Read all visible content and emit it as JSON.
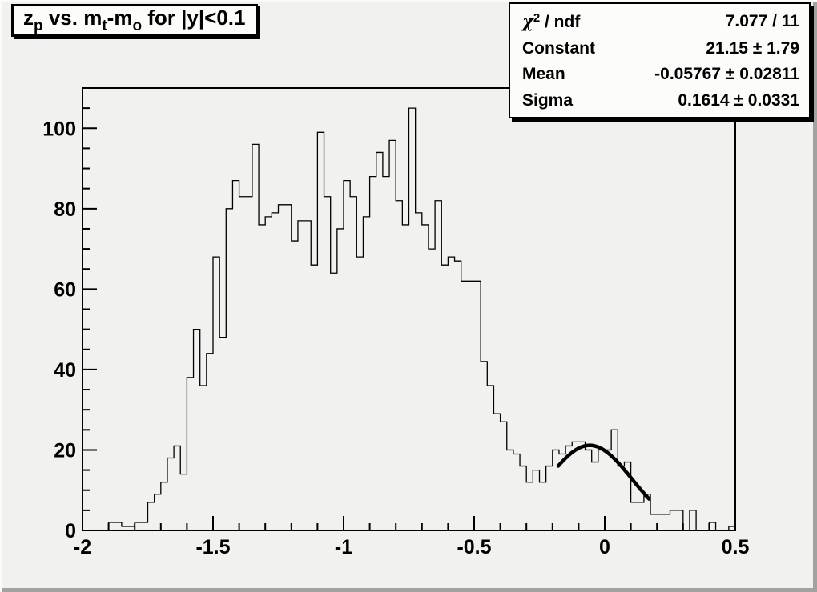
{
  "title": {
    "segments": [
      {
        "t": "z"
      },
      {
        "sub": "p"
      },
      {
        "t": " vs. m"
      },
      {
        "sub": "t"
      },
      {
        "t": "-m"
      },
      {
        "sub": "o"
      },
      {
        "t": " for |y|<0.1"
      }
    ]
  },
  "stats": {
    "rows": [
      {
        "label_segments": [
          {
            "t": "χ",
            "chi": true
          },
          {
            "sup": "2"
          },
          {
            "t": " / ndf"
          }
        ],
        "value": "7.077 / 11"
      },
      {
        "label_segments": [
          {
            "t": "Constant"
          }
        ],
        "value": "21.15 ± 1.79"
      },
      {
        "label_segments": [
          {
            "t": "Mean"
          }
        ],
        "value": "-0.05767 ± 0.02811"
      },
      {
        "label_segments": [
          {
            "t": "Sigma"
          }
        ],
        "value": "0.1614 ± 0.0331"
      }
    ]
  },
  "chart_data": {
    "type": "histogram",
    "title": "z_p vs. m_t-m_o for |y|<0.1",
    "x_start": -2.0,
    "bin_width": 0.025,
    "values": [
      0,
      0,
      0,
      0,
      2,
      2,
      1,
      1,
      2,
      2,
      7,
      9,
      12,
      18,
      21,
      14,
      38,
      50,
      36,
      44,
      68,
      48,
      80,
      87,
      83,
      83,
      96,
      76,
      78,
      79,
      81,
      81,
      72,
      77,
      77,
      66,
      99,
      83,
      64,
      75,
      87,
      83,
      68,
      78,
      88,
      94,
      88,
      97,
      82,
      76,
      105,
      79,
      76,
      70,
      82,
      66,
      68,
      67,
      62,
      62,
      62,
      42,
      36,
      29,
      27,
      20,
      19,
      16,
      12,
      15,
      12,
      16,
      20,
      19,
      21,
      22,
      22,
      20,
      17,
      20,
      20,
      25,
      16,
      17,
      7,
      7,
      9,
      4,
      4,
      4,
      5,
      5,
      0,
      5,
      0,
      0,
      2,
      0,
      0,
      1
    ],
    "x_axis": {
      "min": -2.0,
      "max": 0.5,
      "major_tick_step": 0.5,
      "minor_tick_step": 0.1,
      "major_labels": [
        "-2",
        "-1.5",
        "-1",
        "-0.5",
        "0",
        "0.5"
      ],
      "major_values": [
        -2,
        -1.5,
        -1,
        -0.5,
        0,
        0.5
      ]
    },
    "y_axis": {
      "min": 0,
      "max": 110,
      "major_tick_step": 20,
      "minor_tick_step": 5,
      "major_labels": [
        "0",
        "20",
        "40",
        "60",
        "80",
        "100"
      ],
      "major_values": [
        0,
        20,
        40,
        60,
        80,
        100
      ]
    },
    "fit": {
      "type": "gaussian",
      "constant": 21.15,
      "mean": -0.05767,
      "sigma": 0.1614,
      "draw_range": [
        -0.178,
        0.17
      ]
    },
    "colors": {
      "histogram_line": "#000000",
      "fit_line": "#000000",
      "frame_line": "#000000",
      "canvas_bg": "#f1f1f0",
      "box_bg": "#fcfcfb"
    }
  }
}
